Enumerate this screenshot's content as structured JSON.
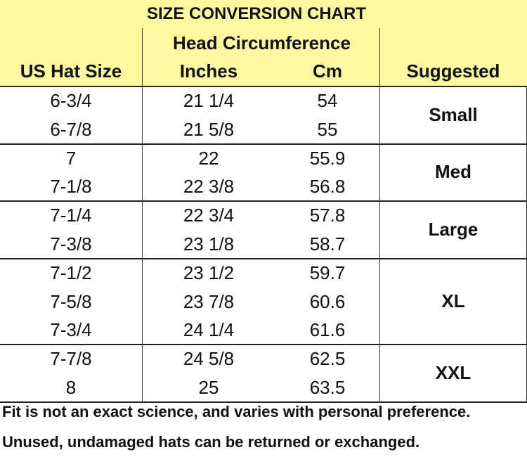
{
  "title": "SIZE CONVERSION CHART",
  "header": {
    "group_label": "Head Circumference",
    "columns": [
      "US Hat Size",
      "Inches",
      "Cm",
      "Suggested"
    ]
  },
  "groups": [
    {
      "suggested": "Small",
      "rows": [
        {
          "us": "6-3/4",
          "inches": "21 1/4",
          "cm": "54"
        },
        {
          "us": "6-7/8",
          "inches": "21 5/8",
          "cm": "55"
        }
      ]
    },
    {
      "suggested": "Med",
      "rows": [
        {
          "us": "7",
          "inches": "22",
          "cm": "55.9"
        },
        {
          "us": "7-1/8",
          "inches": "22 3/8",
          "cm": "56.8"
        }
      ]
    },
    {
      "suggested": "Large",
      "rows": [
        {
          "us": "7-1/4",
          "inches": "22 3/4",
          "cm": "57.8"
        },
        {
          "us": "7-3/8",
          "inches": "23 1/8",
          "cm": "58.7"
        }
      ]
    },
    {
      "suggested": "XL",
      "rows": [
        {
          "us": "7-1/2",
          "inches": "23 1/2",
          "cm": "59.7"
        },
        {
          "us": "7-5/8",
          "inches": "23 7/8",
          "cm": "60.6"
        },
        {
          "us": "7-3/4",
          "inches": "24 1/4",
          "cm": "61.6"
        }
      ]
    },
    {
      "suggested": "XXL",
      "rows": [
        {
          "us": "7-7/8",
          "inches": "24 5/8",
          "cm": "62.5"
        },
        {
          "us": "8",
          "inches": "25",
          "cm": "63.5"
        }
      ]
    }
  ],
  "footer": [
    "Fit is not an exact science, and varies with personal preference.",
    "Unused, undamaged hats can be returned or exchanged."
  ],
  "colors": {
    "header_background": "#fdf79f",
    "lines": "#222222",
    "text": "#111111"
  }
}
